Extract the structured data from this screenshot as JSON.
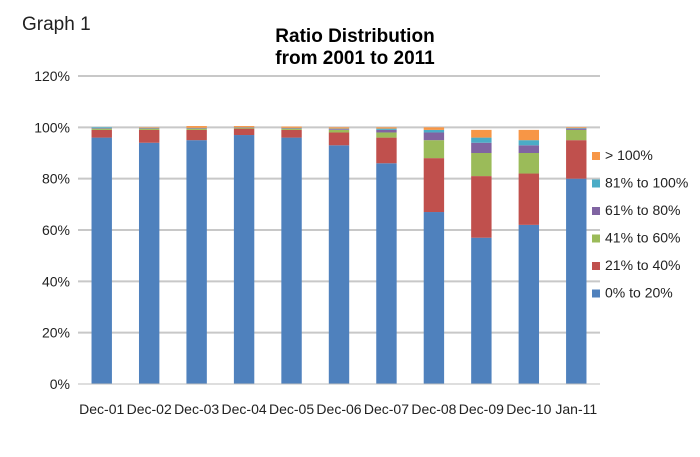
{
  "graph_label": "Graph 1",
  "chart_data": {
    "type": "bar",
    "stacked": true,
    "title_lines": [
      "Ratio Distribution",
      "from 2001 to 2011"
    ],
    "categories": [
      "Dec-01",
      "Dec-02",
      "Dec-03",
      "Dec-04",
      "Dec-05",
      "Dec-06",
      "Dec-07",
      "Dec-08",
      "Dec-09",
      "Dec-10",
      "Jan-11"
    ],
    "ylim": [
      0,
      120
    ],
    "yticks": [
      0,
      20,
      40,
      60,
      80,
      100,
      120
    ],
    "ytick_labels": [
      "0%",
      "20%",
      "40%",
      "60%",
      "80%",
      "100%",
      "120%"
    ],
    "grid": true,
    "legend_position": "right",
    "series": [
      {
        "name": "0% to 20%",
        "color": "#4f81bd",
        "values": [
          96,
          94,
          95,
          97,
          96,
          93,
          86,
          67,
          57,
          62,
          80
        ]
      },
      {
        "name": "21% to 40%",
        "color": "#c0504d",
        "values": [
          3,
          5,
          4,
          2.5,
          3,
          5,
          10,
          21,
          24,
          20,
          15
        ]
      },
      {
        "name": "41% to 60%",
        "color": "#9bbb59",
        "values": [
          0.5,
          0.5,
          0.5,
          0.3,
          0.5,
          1,
          2,
          7,
          9,
          8,
          4
        ]
      },
      {
        "name": "61% to 80%",
        "color": "#8064a2",
        "values": [
          0.2,
          0.2,
          0.2,
          0.1,
          0.2,
          0.3,
          1,
          3,
          4,
          3,
          0.5
        ]
      },
      {
        "name": "81% to 100%",
        "color": "#4bacc6",
        "values": [
          0.3,
          0.1,
          0.1,
          0.1,
          0.1,
          0.2,
          0.5,
          1,
          2,
          2,
          0.2
        ]
      },
      {
        "name": "> 100%",
        "color": "#f79646",
        "values": [
          0,
          0.2,
          0.7,
          0.5,
          0.5,
          0.5,
          0.5,
          1,
          3,
          4,
          0.3
        ]
      }
    ]
  }
}
